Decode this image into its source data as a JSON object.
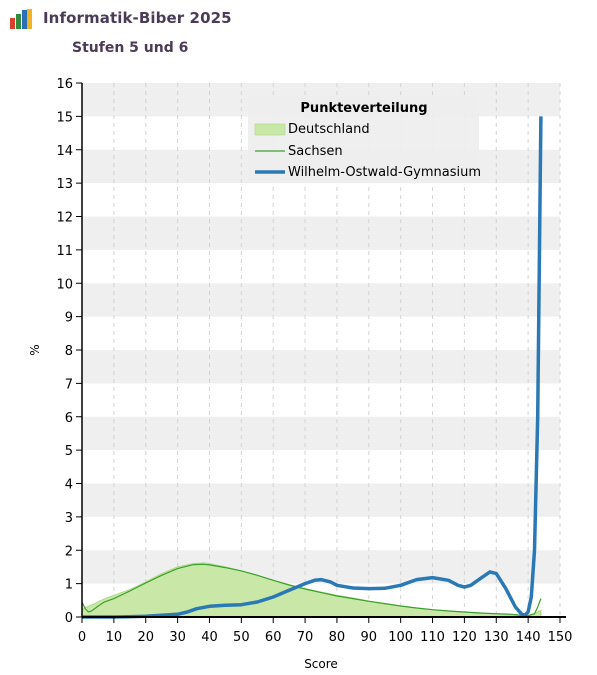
{
  "header": {
    "title": "Informatik-Biber 2025",
    "subtitle": "Stufen 5 und 6",
    "logo_icon": "bar-chart-logo-icon"
  },
  "colors": {
    "band": "#efefef",
    "deutschland_fill": "#c9e8a8",
    "deutschland_line": "#a9d884",
    "sachsen": "#3aa02c",
    "gymnasium": "#2a79b5",
    "title_text": "#4a3b57"
  },
  "chart_data": {
    "type": "line",
    "xlabel": "Score",
    "ylabel": "%",
    "xlim": [
      0,
      150
    ],
    "ylim": [
      0,
      16
    ],
    "x_ticks": [
      0,
      10,
      20,
      30,
      40,
      50,
      60,
      70,
      80,
      90,
      100,
      110,
      120,
      130,
      140,
      150
    ],
    "y_ticks": [
      0,
      1,
      2,
      3,
      4,
      5,
      6,
      7,
      8,
      9,
      10,
      11,
      12,
      13,
      14,
      15,
      16
    ],
    "grid": "alternating horizontal bands, dashed vertical lines",
    "legend": {
      "title": "Punkteverteilung",
      "placement": "top-center",
      "entries": [
        "Deutschland",
        "Sachsen",
        "Wilhelm-Ostwald-Gymnasium"
      ]
    },
    "series": [
      {
        "name": "Deutschland",
        "style": "area",
        "x": [
          0,
          2,
          4,
          6,
          8,
          10,
          15,
          20,
          25,
          30,
          35,
          38,
          40,
          45,
          50,
          55,
          60,
          65,
          70,
          75,
          80,
          85,
          90,
          95,
          100,
          105,
          110,
          115,
          120,
          125,
          130,
          135,
          138,
          140,
          142,
          144
        ],
        "y": [
          0.25,
          0.32,
          0.4,
          0.5,
          0.58,
          0.65,
          0.82,
          1.05,
          1.3,
          1.5,
          1.6,
          1.62,
          1.6,
          1.5,
          1.38,
          1.25,
          1.1,
          0.97,
          0.85,
          0.75,
          0.65,
          0.57,
          0.48,
          0.4,
          0.33,
          0.27,
          0.22,
          0.18,
          0.14,
          0.11,
          0.08,
          0.05,
          0.04,
          0.05,
          0.1,
          0.2
        ]
      },
      {
        "name": "Sachsen",
        "style": "line",
        "x": [
          0,
          1,
          2,
          3,
          5,
          7,
          10,
          15,
          20,
          25,
          30,
          35,
          38,
          40,
          45,
          50,
          55,
          60,
          65,
          70,
          75,
          80,
          85,
          90,
          95,
          100,
          105,
          110,
          115,
          120,
          125,
          130,
          135,
          138,
          140,
          142,
          143,
          144
        ],
        "y": [
          0.45,
          0.25,
          0.15,
          0.18,
          0.32,
          0.45,
          0.55,
          0.78,
          1.02,
          1.25,
          1.45,
          1.57,
          1.58,
          1.56,
          1.48,
          1.38,
          1.25,
          1.1,
          0.96,
          0.84,
          0.73,
          0.63,
          0.55,
          0.47,
          0.4,
          0.33,
          0.27,
          0.22,
          0.18,
          0.15,
          0.12,
          0.1,
          0.08,
          0.05,
          0.04,
          0.1,
          0.3,
          0.55
        ]
      },
      {
        "name": "Wilhelm-Ostwald-Gymnasium",
        "style": "line",
        "x": [
          0,
          10,
          20,
          25,
          30,
          33,
          36,
          40,
          45,
          50,
          55,
          60,
          65,
          70,
          73,
          75,
          78,
          80,
          85,
          90,
          95,
          100,
          105,
          110,
          115,
          118,
          120,
          122,
          125,
          128,
          130,
          133,
          136,
          138,
          139,
          140,
          141,
          142,
          143,
          144
        ],
        "y": [
          0,
          0,
          0.02,
          0.05,
          0.08,
          0.15,
          0.25,
          0.32,
          0.35,
          0.37,
          0.45,
          0.6,
          0.8,
          1.0,
          1.1,
          1.12,
          1.05,
          0.95,
          0.87,
          0.85,
          0.86,
          0.95,
          1.12,
          1.18,
          1.1,
          0.95,
          0.9,
          0.95,
          1.15,
          1.35,
          1.3,
          0.85,
          0.3,
          0.08,
          0.05,
          0.15,
          0.6,
          2.0,
          6.0,
          15.0
        ]
      }
    ]
  }
}
